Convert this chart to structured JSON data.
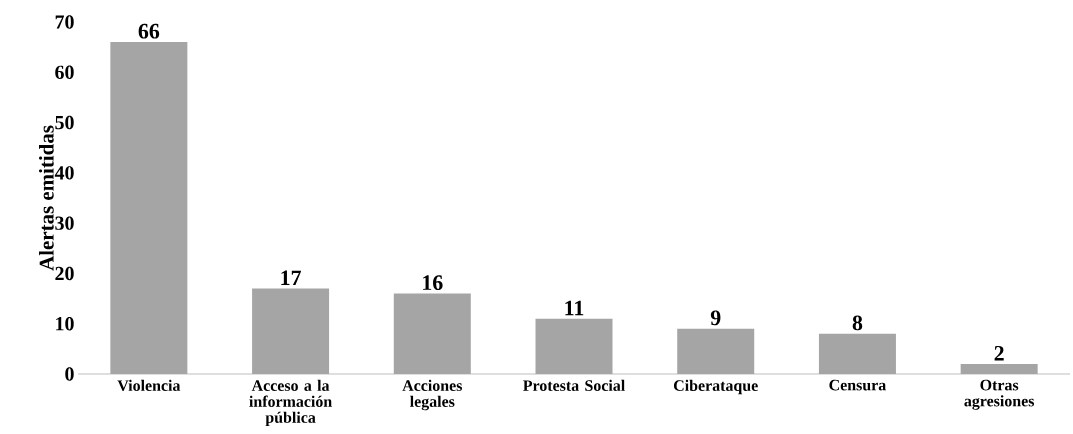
{
  "chart_data": {
    "type": "bar",
    "ylabel": "Alertas emitidas",
    "categories": [
      "Violencia",
      "Acceso a la información pública",
      "Acciones legales",
      "Protesta Social",
      "Ciberataque",
      "Censura",
      "Otras agresiones"
    ],
    "values": [
      66,
      17,
      16,
      11,
      9,
      8,
      2
    ],
    "color": "#a5a5a5",
    "ylim": [
      0,
      70
    ],
    "yticks": [
      0,
      10,
      20,
      30,
      40,
      50,
      60,
      70
    ],
    "data_labels": true
  }
}
